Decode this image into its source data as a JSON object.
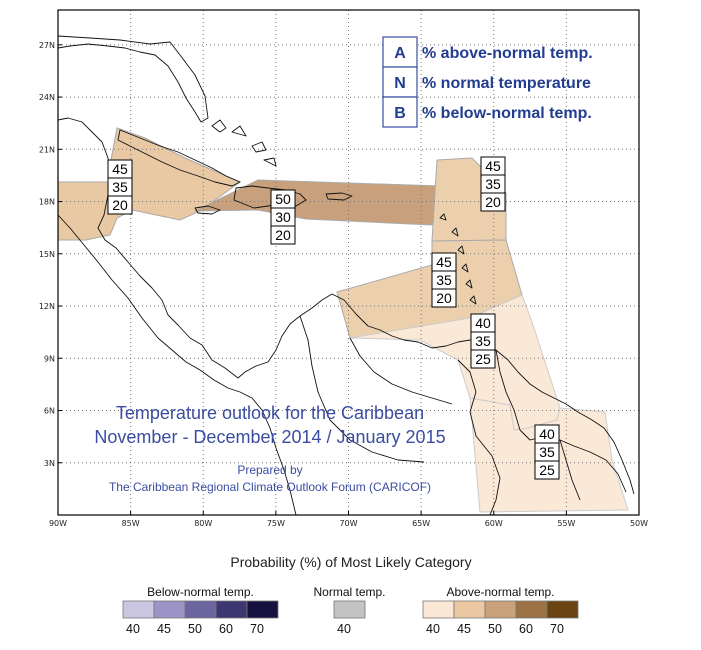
{
  "map": {
    "lat_ticks": [
      {
        "deg": 27,
        "label": "27N"
      },
      {
        "deg": 24,
        "label": "24N"
      },
      {
        "deg": 21,
        "label": "21N"
      },
      {
        "deg": 18,
        "label": "18N"
      },
      {
        "deg": 15,
        "label": "15N"
      },
      {
        "deg": 12,
        "label": "12N"
      },
      {
        "deg": 9,
        "label": "9N"
      },
      {
        "deg": 6,
        "label": "6N"
      },
      {
        "deg": 3,
        "label": "3N"
      }
    ],
    "lon_ticks": [
      {
        "deg": -90,
        "label": "90W"
      },
      {
        "deg": -85,
        "label": "85W"
      },
      {
        "deg": -80,
        "label": "80W"
      },
      {
        "deg": -75,
        "label": "75W"
      },
      {
        "deg": -70,
        "label": "70W"
      },
      {
        "deg": -65,
        "label": "65W"
      },
      {
        "deg": -60,
        "label": "60W"
      },
      {
        "deg": -55,
        "label": "55W"
      },
      {
        "deg": -50,
        "label": "50W"
      }
    ],
    "lon_range": [
      -90,
      -50
    ],
    "lat_range": [
      0,
      29
    ],
    "grid": "dotted"
  },
  "key": {
    "items": [
      {
        "letter": "A",
        "text": "% above-normal temp."
      },
      {
        "letter": "N",
        "text": "% normal temperature"
      },
      {
        "letter": "B",
        "text": "% below-normal temp."
      }
    ]
  },
  "regions": [
    {
      "name": "central-america-west",
      "color": "#e8c9a4",
      "values": [
        "45",
        "35",
        "20"
      ]
    },
    {
      "name": "greater-antilles",
      "color": "#c8a07b",
      "values": [
        "50",
        "30",
        "20"
      ]
    },
    {
      "name": "northern-lesser-antilles",
      "color": "#ecd0ae",
      "values": [
        "45",
        "35",
        "20"
      ]
    },
    {
      "name": "southern-caribbean",
      "color": "#ecd0ae",
      "values": [
        "45",
        "35",
        "20"
      ]
    },
    {
      "name": "guianas-coast",
      "color": "#fbe9d8",
      "values": [
        "40",
        "35",
        "25"
      ]
    },
    {
      "name": "guianas-south",
      "color": "#fbe9d8",
      "values": [
        "40",
        "35",
        "25"
      ]
    }
  ],
  "title": {
    "line1": "Temperature outlook for the Caribbean",
    "line2": "November - December 2014 / January 2015",
    "prepared": "Prepared by",
    "forum": "The Caribbean Regional Climate Outlook Forum (CARICOF)"
  },
  "colorbar": {
    "title": "Probability (%) of Most Likely Category",
    "groups": [
      {
        "label": "Below-normal temp.",
        "swatches": [
          {
            "color": "#cbc7e3",
            "label": "40"
          },
          {
            "color": "#9c94c6",
            "label": "45"
          },
          {
            "color": "#6c649f",
            "label": "50"
          },
          {
            "color": "#3d3670",
            "label": "60"
          },
          {
            "color": "#171140",
            "label": "70"
          }
        ]
      },
      {
        "label": "Normal temp.",
        "swatches": [
          {
            "color": "#c3c3c3",
            "label": "40"
          }
        ]
      },
      {
        "label": "Above-normal temp.",
        "swatches": [
          {
            "color": "#fbe7d5",
            "label": "40"
          },
          {
            "color": "#ebc8a2",
            "label": "45"
          },
          {
            "color": "#c9a27b",
            "label": "50"
          },
          {
            "color": "#9c7245",
            "label": "60"
          },
          {
            "color": "#6b4413",
            "label": "70"
          }
        ]
      }
    ]
  }
}
